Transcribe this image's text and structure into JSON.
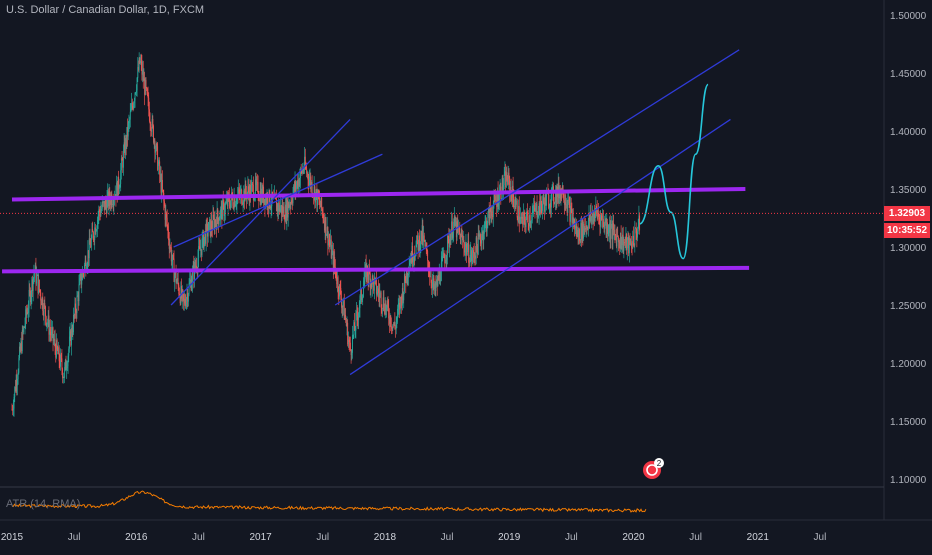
{
  "header": {
    "title": "U.S. Dollar / Canadian Dollar, 1D, FXCM"
  },
  "indicator": {
    "label": "ATR (14, RMA)"
  },
  "price_tag": {
    "price": "1.32903",
    "countdown": "10:35:52"
  },
  "badge": {
    "count": "2"
  },
  "colors": {
    "background": "#131722",
    "candle_up": "#26a69a",
    "candle_down": "#ef5350",
    "channel": "#2f3bd8",
    "horizontal_level": "#9c27f0",
    "projection": "#26c6da",
    "atr": "#f57c00",
    "price_line": "#f23645"
  },
  "chart_data": {
    "type": "candlestick",
    "title": "U.S. Dollar / Canadian Dollar, 1D, FXCM",
    "y_axis": {
      "ticks": [
        "1.50000",
        "1.45000",
        "1.40000",
        "1.35000",
        "1.30000",
        "1.25000",
        "1.20000",
        "1.15000",
        "1.10000"
      ],
      "range": [
        1.08,
        1.51
      ]
    },
    "x_axis": {
      "ticks": [
        "2015",
        "Jul",
        "2016",
        "Jul",
        "2017",
        "Jul",
        "2018",
        "Jul",
        "2019",
        "Jul",
        "2020",
        "Jul",
        "2021",
        "Jul"
      ]
    },
    "price_path": [
      {
        "t": 2015.0,
        "p": 1.16
      },
      {
        "t": 2015.08,
        "p": 1.22
      },
      {
        "t": 2015.18,
        "p": 1.28
      },
      {
        "t": 2015.3,
        "p": 1.23
      },
      {
        "t": 2015.42,
        "p": 1.19
      },
      {
        "t": 2015.55,
        "p": 1.27
      },
      {
        "t": 2015.7,
        "p": 1.33
      },
      {
        "t": 2015.85,
        "p": 1.35
      },
      {
        "t": 2016.03,
        "p": 1.46
      },
      {
        "t": 2016.15,
        "p": 1.39
      },
      {
        "t": 2016.3,
        "p": 1.28
      },
      {
        "t": 2016.38,
        "p": 1.25
      },
      {
        "t": 2016.55,
        "p": 1.31
      },
      {
        "t": 2016.75,
        "p": 1.34
      },
      {
        "t": 2016.95,
        "p": 1.35
      },
      {
        "t": 2017.2,
        "p": 1.33
      },
      {
        "t": 2017.35,
        "p": 1.37
      },
      {
        "t": 2017.5,
        "p": 1.33
      },
      {
        "t": 2017.68,
        "p": 1.24
      },
      {
        "t": 2017.72,
        "p": 1.21
      },
      {
        "t": 2017.85,
        "p": 1.28
      },
      {
        "t": 2018.0,
        "p": 1.25
      },
      {
        "t": 2018.08,
        "p": 1.23
      },
      {
        "t": 2018.2,
        "p": 1.29
      },
      {
        "t": 2018.3,
        "p": 1.31
      },
      {
        "t": 2018.4,
        "p": 1.26
      },
      {
        "t": 2018.55,
        "p": 1.32
      },
      {
        "t": 2018.7,
        "p": 1.29
      },
      {
        "t": 2018.85,
        "p": 1.33
      },
      {
        "t": 2018.98,
        "p": 1.36
      },
      {
        "t": 2019.1,
        "p": 1.32
      },
      {
        "t": 2019.3,
        "p": 1.34
      },
      {
        "t": 2019.43,
        "p": 1.35
      },
      {
        "t": 2019.55,
        "p": 1.31
      },
      {
        "t": 2019.7,
        "p": 1.33
      },
      {
        "t": 2019.85,
        "p": 1.31
      },
      {
        "t": 2019.97,
        "p": 1.3
      },
      {
        "t": 2020.05,
        "p": 1.32
      }
    ],
    "annotations": {
      "horizontal_levels": [
        {
          "t1": 2015.0,
          "t2": 2020.9,
          "p1": 1.341,
          "p2": 1.35
        },
        {
          "t1": 2014.92,
          "t2": 2020.93,
          "p1": 1.279,
          "p2": 1.282
        }
      ],
      "channels": [
        {
          "t1": 2016.28,
          "t2": 2017.72,
          "p1": 1.25,
          "p2": 1.41
        },
        {
          "t1": 2016.3,
          "t2": 2017.98,
          "p1": 1.3,
          "p2": 1.38
        },
        {
          "t1": 2017.6,
          "t2": 2020.85,
          "p1": 1.25,
          "p2": 1.47
        },
        {
          "t1": 2017.72,
          "t2": 2020.78,
          "p1": 1.19,
          "p2": 1.41
        }
      ],
      "projection": [
        {
          "t": 2020.05,
          "p": 1.32
        },
        {
          "t": 2020.2,
          "p": 1.37
        },
        {
          "t": 2020.3,
          "p": 1.33
        },
        {
          "t": 2020.4,
          "p": 1.29
        },
        {
          "t": 2020.5,
          "p": 1.38
        },
        {
          "t": 2020.6,
          "p": 1.44
        }
      ]
    },
    "grid": false,
    "current_price": 1.32903
  }
}
